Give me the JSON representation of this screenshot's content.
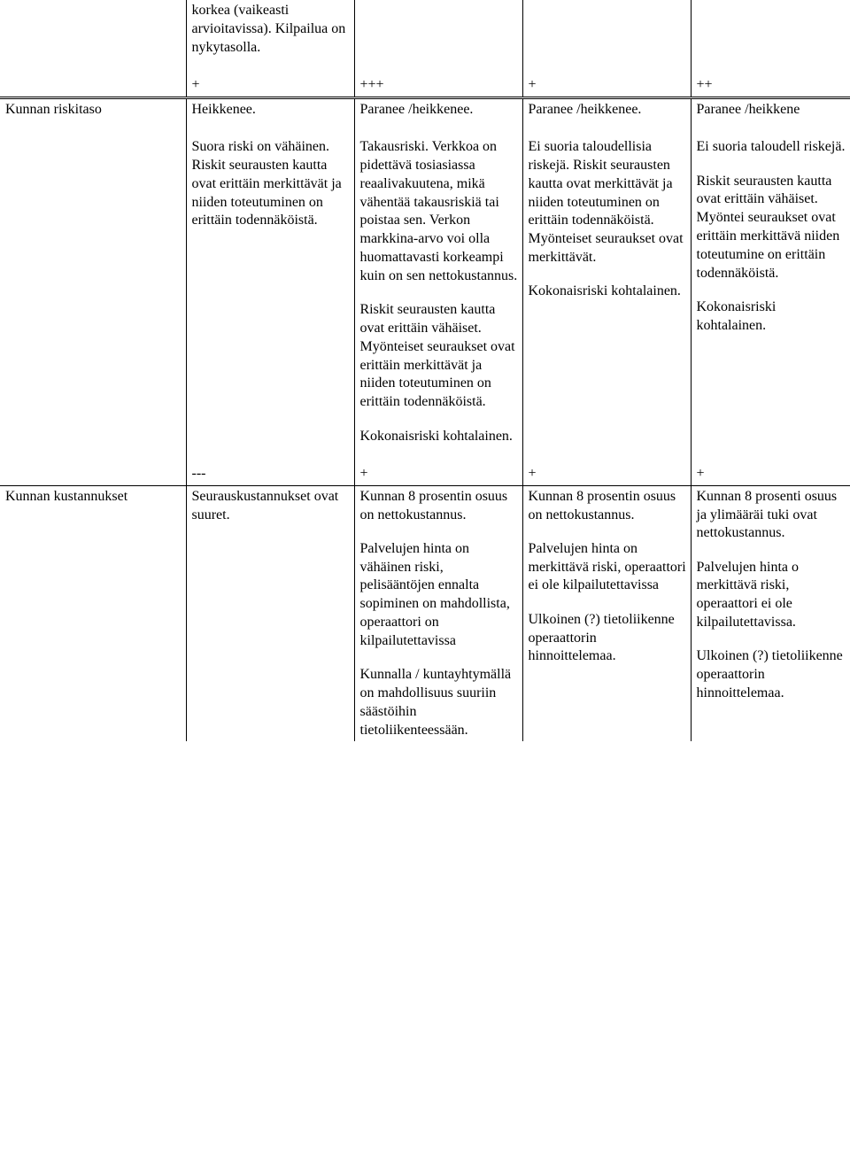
{
  "row_top": {
    "c0": "",
    "c1": "korkea (vaikeasti arvioitavissa). Kilpailua on nykytasolla.",
    "c2": "",
    "c3": "",
    "c4": ""
  },
  "row_signs1": {
    "c0": "",
    "c1": "+",
    "c2": "+++",
    "c3": "+",
    "c4": "++"
  },
  "row_risk_header": {
    "c0": "Kunnan riskitaso",
    "c1": "Heikkenee.",
    "c2": "Paranee /heikkenee.",
    "c3": "Paranee /heikkenee.",
    "c4": "Paranee /heikkene"
  },
  "row_risk_body": {
    "c1_p1": "Suora riski on vähäinen. Riskit seurausten kautta ovat erittäin merkittävät ja niiden toteutuminen on erittäin todennäköistä.",
    "c2_p1": "Takausriski. Verkkoa on pidettävä tosiasiassa reaalivakuutena, mikä vähentää takausriskiä tai poistaa sen. Verkon markkina-arvo voi olla huomattavasti korkeampi kuin on sen nettokustannus.",
    "c2_p2": "Riskit  seurausten kautta ovat erittäin vähäiset. Myönteiset seuraukset ovat erittäin merkittävät ja niiden toteutuminen on erittäin todennäköistä.",
    "c2_p3": "Kokonaisriski kohtalainen.",
    "c3_p1": "Ei suoria taloudellisia riskejä. Riskit seurausten kautta ovat merkittävät ja niiden toteutuminen on erittäin todennäköistä. Myönteiset seuraukset ovat merkittävät.",
    "c3_p2": "Kokonaisriski kohtalainen.",
    "c4_p1": "Ei suoria taloudell riskejä.",
    "c4_p2": "Riskit seurausten kautta ovat erittäin vähäiset. Myöntei seuraukset ovat erittäin merkittävä niiden toteutumine on erittäin todennäköistä.",
    "c4_p3": "Kokonaisriski kohtalainen."
  },
  "row_signs2": {
    "c0": "",
    "c1": "---",
    "c2": "+",
    "c3": "+",
    "c4": "+"
  },
  "row_cost_header": {
    "c0": "Kunnan kustannukset",
    "c1": "Seurauskustannukset ovat suuret.",
    "c2_p1": "Kunnan 8 prosentin osuus on nettokustannus.",
    "c2_p2": "Palvelujen hinta on vähäinen riski, pelisääntöjen ennalta sopiminen on mahdollista, operaattori on kilpailutettavissa",
    "c2_p3": "Kunnalla / kuntayhtymällä on mahdollisuus suuriin säästöihin tietoliikenteessään.",
    "c3_p1": "Kunnan 8 prosentin osuus on nettokustannus.",
    "c3_p2": "Palvelujen hinta on merkittävä riski, operaattori ei ole kilpailutettavissa",
    "c3_p3": "Ulkoinen (?) tietoliikenne operaattorin hinnoittelemaa.",
    "c4_p1": "Kunnan 8 prosenti osuus ja ylimääräi tuki ovat nettokustannus.",
    "c4_p2": "Palvelujen hinta o merkittävä riski, operaattori ei ole kilpailutettavissa.",
    "c4_p3": "Ulkoinen (?) tietoliikenne operaattorin hinnoittelemaa."
  }
}
